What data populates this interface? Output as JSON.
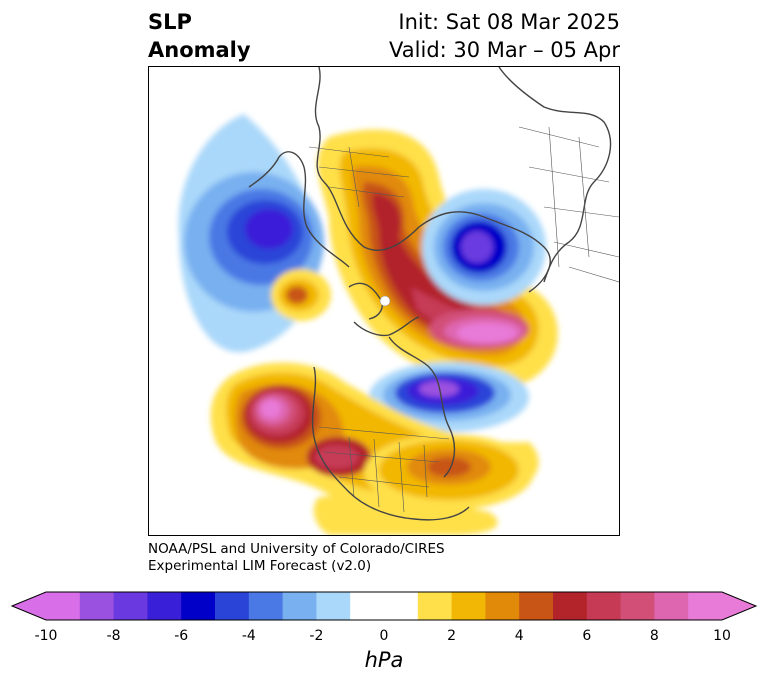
{
  "header": {
    "title_line1": "SLP",
    "title_line2": "Anomaly",
    "init": "Init: Sat 08 Mar 2025",
    "valid": "Valid: 30 Mar – 05 Apr"
  },
  "credit": {
    "line1": "NOAA/PSL and University of Colorado/CIRES",
    "line2": "Experimental LIM Forecast (v2.0)"
  },
  "colorbar": {
    "unit": "hPa",
    "tick_labels": [
      "-10",
      "-8",
      "-6",
      "-4",
      "-2",
      "0",
      "2",
      "4",
      "6",
      "8",
      "10"
    ],
    "colors": [
      "#d86fe8",
      "#9b51e0",
      "#6a3ae0",
      "#3a1fd8",
      "#0000c8",
      "#2a44d8",
      "#4a78e4",
      "#78b0f0",
      "#aad8fa",
      "#ffffff",
      "#ffffff",
      "#ffe04a",
      "#f2b705",
      "#e18a0a",
      "#c85516",
      "#b2232a",
      "#c63a56",
      "#d25078",
      "#de66b0",
      "#e87ad8"
    ]
  },
  "map": {
    "projection": "north polar stereographic",
    "field": "sea level pressure anomaly",
    "features": [
      "negative anomaly over North Pacific",
      "positive anomaly over Arctic and Greenland",
      "negative anomaly over Siberia",
      "negative anomaly over eastern Canada and North Atlantic",
      "positive anomaly over western North America and eastern Pacific",
      "positive anomaly over western Atlantic"
    ]
  }
}
